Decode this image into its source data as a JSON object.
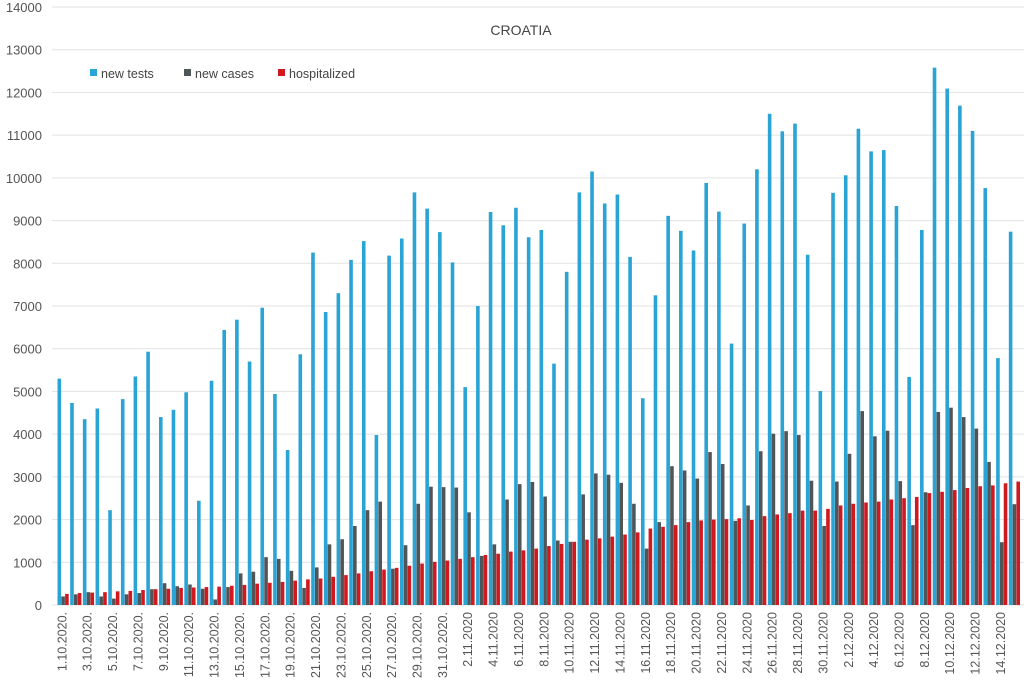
{
  "chart_data": {
    "type": "bar",
    "title": "CROATIA",
    "xlabel": "",
    "ylabel": "",
    "ylim": [
      0,
      14000
    ],
    "yticks": [
      0,
      1000,
      2000,
      3000,
      4000,
      5000,
      6000,
      7000,
      8000,
      9000,
      10000,
      11000,
      12000,
      13000,
      14000
    ],
    "grid": true,
    "legend_position": "top-left",
    "categories": [
      "1.10.2020.",
      "2.10.2020.",
      "3.10.2020.",
      "4.10.2020.",
      "5.10.2020.",
      "6.10.2020.",
      "7.10.2020.",
      "8.10.2020.",
      "9.10.2020.",
      "10.10.2020.",
      "11.10.2020.",
      "12.10.2020.",
      "13.10.2020.",
      "14.10.2020.",
      "15.10.2020.",
      "16.10.2020.",
      "17.10.2020.",
      "18.10.2020.",
      "19.10.2020.",
      "20.10.2020.",
      "21.10.2020.",
      "22.10.2020.",
      "23.10.2020.",
      "24.10.2020.",
      "25.10.2020.",
      "26.10.2020.",
      "27.10.2020.",
      "28.10.2020.",
      "29.10.2020.",
      "30.10.2020.",
      "31.10.2020.",
      "1.11.2020.",
      "2.11.2020",
      "3.11.2020",
      "4.11.2020",
      "5.11.2020",
      "6.11.2020",
      "7.11.2020",
      "8.11.2020",
      "9.11.2020",
      "10.11.2020",
      "11.11.2020",
      "12.11.2020",
      "13.11.2020",
      "14.11.2020",
      "15.11.2020",
      "16.11.2020",
      "17.11.2020",
      "18.11.2020",
      "19.11.2020",
      "20.11.2020",
      "21.11.2020",
      "22.11.2020",
      "23.11.2020",
      "24.11.2020",
      "25.11.2020",
      "26.11.2020",
      "27.11.2020",
      "28.11.2020",
      "29.11.2020",
      "30.11.2020",
      "1.12.2020",
      "2.12.2020",
      "3.12.2020",
      "4.12.2020",
      "5.12.2020",
      "6.12.2020",
      "7.12.2020",
      "8.12.2020",
      "9.12.2020",
      "10.12.2020",
      "11.12.2020",
      "12.12.2020",
      "13.12.2020",
      "14.12.2020",
      "15.12.2020"
    ],
    "label_every": 2,
    "series": [
      {
        "name": "new tests",
        "color": "#2aa3d5",
        "values": [
          5300,
          4730,
          4350,
          4600,
          2220,
          4820,
          5350,
          5930,
          4400,
          4570,
          4980,
          2440,
          5250,
          6440,
          6680,
          5700,
          6960,
          4940,
          3630,
          5870,
          8250,
          6860,
          7300,
          8080,
          8520,
          3980,
          8180,
          8580,
          9660,
          9280,
          8730,
          8020,
          5100,
          7000,
          9200,
          8890,
          9300,
          8610,
          8780,
          5650,
          7800,
          9660,
          10150,
          9400,
          9610,
          8150,
          4840,
          7250,
          9110,
          8760,
          8300,
          9880,
          9210,
          6120,
          8930,
          10200,
          11500,
          11090,
          11270,
          8200,
          5010,
          9650,
          10060,
          11150,
          10620,
          10650,
          9340,
          5340,
          8780,
          12580,
          12090,
          11690,
          11100,
          9760,
          5780,
          8740
        ]
      },
      {
        "name": "new cases",
        "color": "#505558",
        "values": [
          200,
          250,
          300,
          200,
          150,
          250,
          280,
          370,
          510,
          440,
          480,
          380,
          130,
          420,
          740,
          780,
          1120,
          1080,
          800,
          400,
          880,
          1420,
          1540,
          1850,
          2220,
          2420,
          850,
          1400,
          2370,
          2770,
          2760,
          2750,
          2170,
          1150,
          1420,
          2470,
          2830,
          2880,
          2540,
          1510,
          1480,
          2590,
          3080,
          3050,
          2860,
          2370,
          1320,
          1940,
          3250,
          3150,
          2960,
          3580,
          3300,
          1970,
          2330,
          3600,
          4010,
          4070,
          3980,
          2910,
          1850,
          2890,
          3540,
          4540,
          3950,
          4080,
          2900,
          1870,
          2640,
          4520,
          4620,
          4400,
          4130,
          3350,
          1470,
          2360
        ]
      },
      {
        "name": "hospitalized",
        "color": "#d0181f",
        "values": [
          260,
          280,
          290,
          300,
          320,
          330,
          350,
          370,
          380,
          400,
          410,
          420,
          430,
          450,
          470,
          500,
          520,
          540,
          570,
          600,
          620,
          660,
          700,
          740,
          790,
          830,
          870,
          920,
          970,
          1010,
          1040,
          1080,
          1120,
          1170,
          1200,
          1250,
          1280,
          1320,
          1380,
          1430,
          1480,
          1530,
          1560,
          1600,
          1650,
          1700,
          1790,
          1830,
          1870,
          1940,
          1980,
          2000,
          2010,
          2030,
          1990,
          2080,
          2120,
          2150,
          2210,
          2210,
          2250,
          2330,
          2370,
          2400,
          2420,
          2470,
          2500,
          2530,
          2620,
          2650,
          2690,
          2740,
          2780,
          2800,
          2850,
          2890
        ]
      }
    ]
  }
}
